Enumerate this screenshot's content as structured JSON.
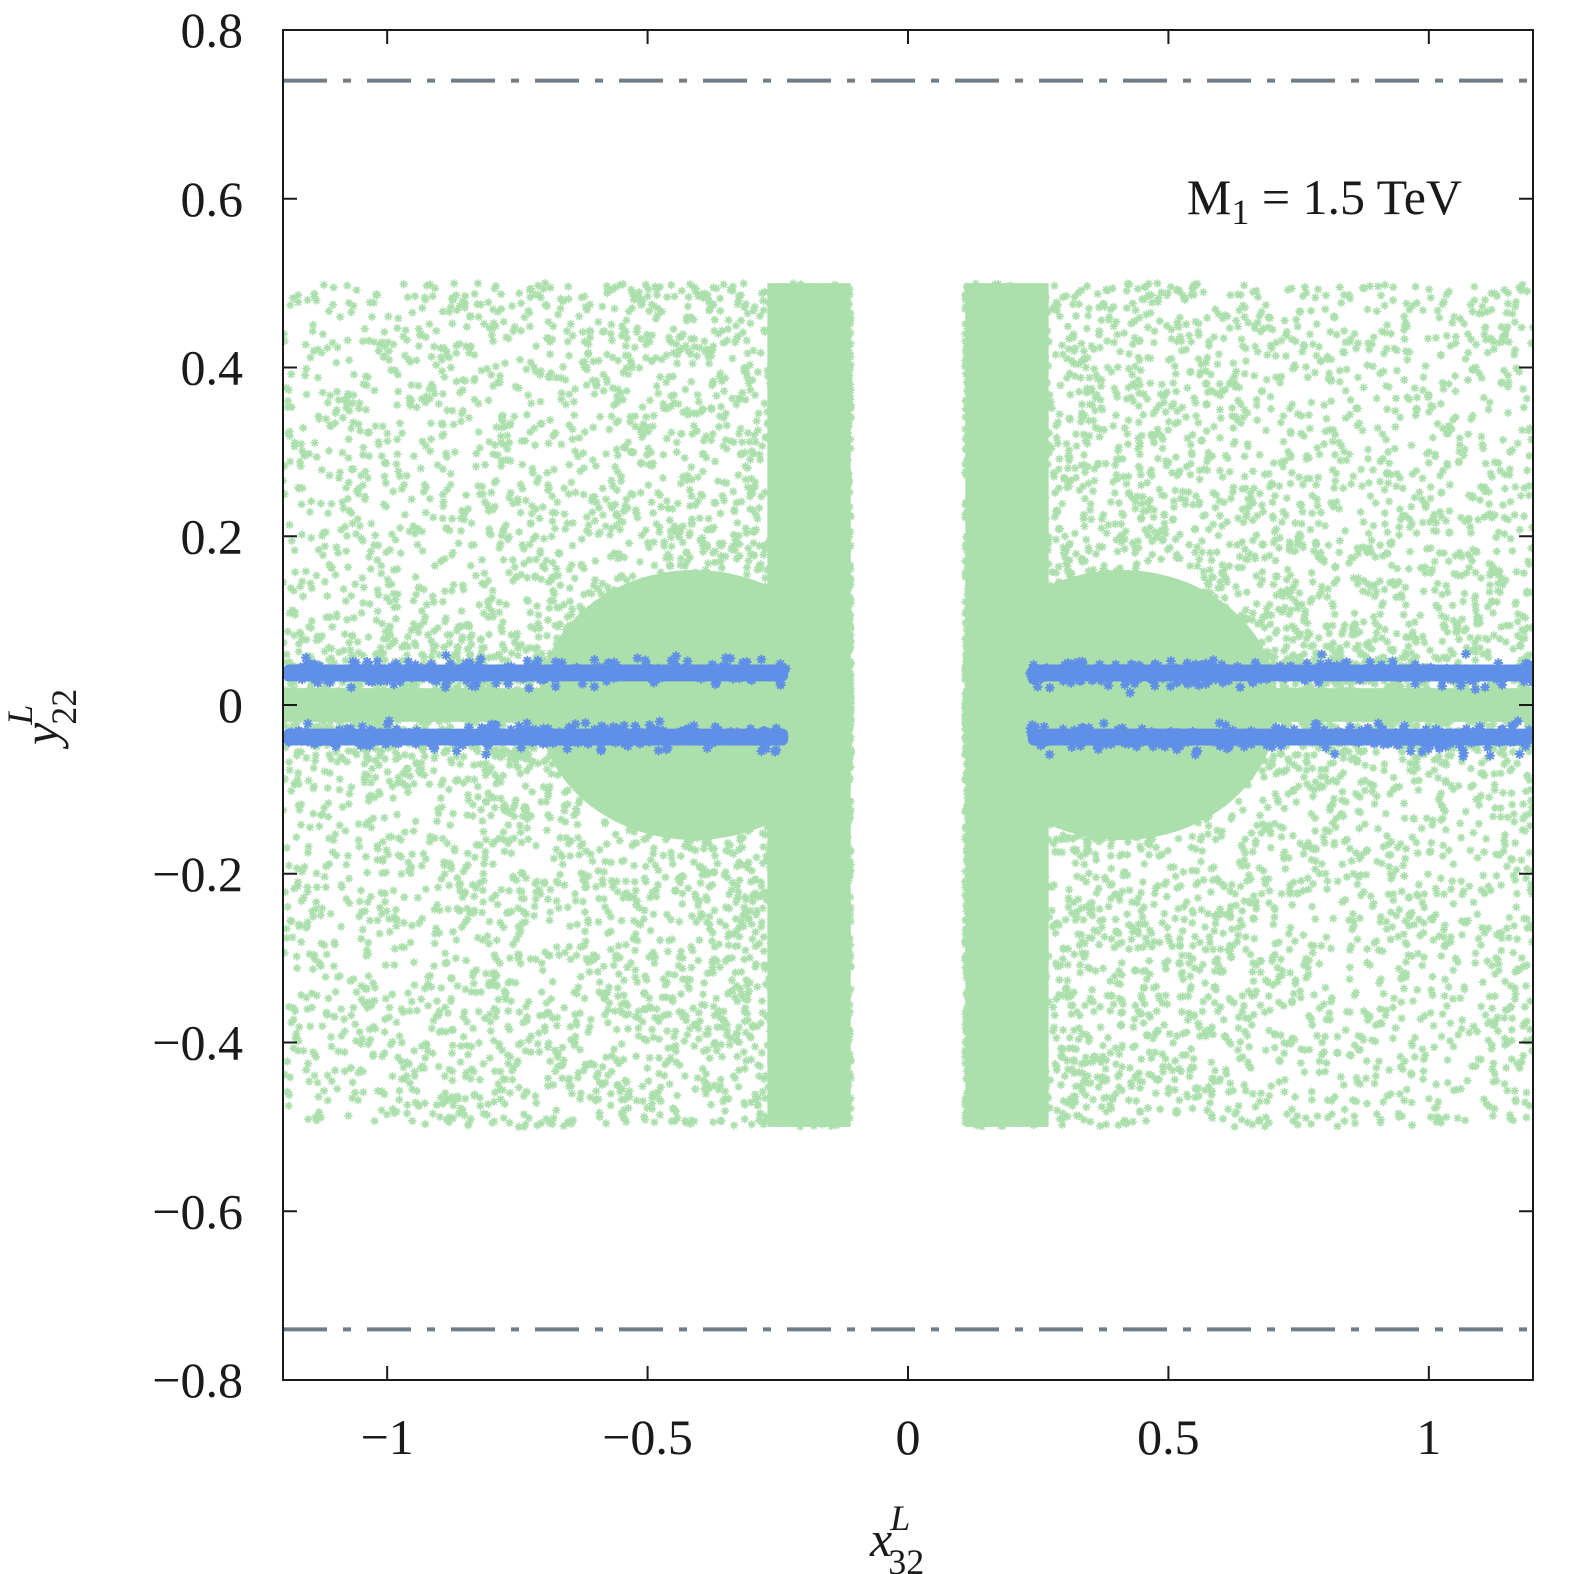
{
  "chart_data": {
    "type": "scatter",
    "xlim": [
      -1.2,
      1.2
    ],
    "ylim": [
      -0.8,
      0.8
    ],
    "x_ticks": [
      {
        "value": -1,
        "label": "−1"
      },
      {
        "value": -0.5,
        "label": "−0.5"
      },
      {
        "value": 0,
        "label": "0"
      },
      {
        "value": 0.5,
        "label": "0.5"
      },
      {
        "value": 1,
        "label": "1"
      }
    ],
    "y_ticks": [
      {
        "value": 0.8,
        "label": "0.8"
      },
      {
        "value": 0.6,
        "label": "0.6"
      },
      {
        "value": 0.4,
        "label": "0.4"
      },
      {
        "value": 0.2,
        "label": "0.2"
      },
      {
        "value": 0,
        "label": "0"
      },
      {
        "value": -0.2,
        "label": "−0.2"
      },
      {
        "value": -0.4,
        "label": "−0.4"
      },
      {
        "value": -0.6,
        "label": "−0.6"
      },
      {
        "value": -0.8,
        "label": "−0.8"
      }
    ],
    "xlabel": {
      "base": "x",
      "sup": "L",
      "sub": "32"
    },
    "ylabel": {
      "base": "y",
      "sup": "L",
      "sub": "22"
    },
    "annotation": {
      "text": "M",
      "sub": "1",
      "rest": " = 1.5 TeV",
      "placement": "top-right"
    },
    "grid": false,
    "series": [
      {
        "marker": "asterisk",
        "color": "#abdfac",
        "regions": [
          {
            "x": [
              -1.2,
              -0.11
            ],
            "y": [
              -0.5,
              0.5
            ],
            "density": "increasing toward x = ±0.11"
          },
          {
            "x": [
              0.11,
              1.2
            ],
            "y": [
              -0.5,
              0.5
            ],
            "density": "increasing toward x = ±0.11"
          }
        ]
      },
      {
        "marker": "asterisk",
        "color": "#5f8fe6",
        "bands": [
          {
            "x": [
              -1.2,
              -0.23
            ],
            "y": [
              0.028,
              0.048
            ]
          },
          {
            "x": [
              -1.2,
              -0.23
            ],
            "y": [
              -0.048,
              -0.028
            ]
          },
          {
            "x": [
              0.23,
              1.2
            ],
            "y": [
              0.028,
              0.048
            ]
          },
          {
            "x": [
              0.23,
              1.2
            ],
            "y": [
              -0.048,
              -0.028
            ]
          }
        ]
      }
    ],
    "reference_lines": [
      {
        "y": 0.74,
        "style": "dash-dot",
        "color": "#6f7d89"
      },
      {
        "y": -0.74,
        "style": "dash-dot",
        "color": "#6f7d89"
      }
    ]
  }
}
